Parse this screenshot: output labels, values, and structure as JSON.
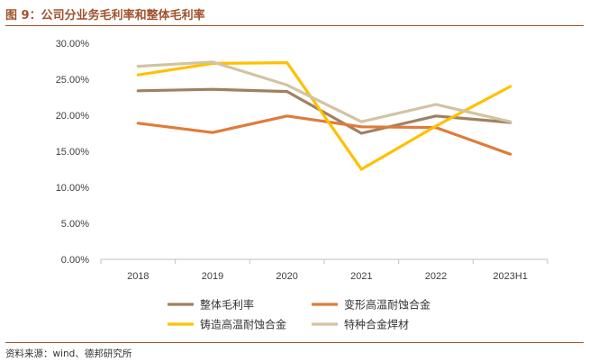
{
  "figure": {
    "title": "图 9：公司分业务毛利率和整体毛利率",
    "source": "资料来源：wind、德邦研究所"
  },
  "chart_data": {
    "type": "line",
    "categories": [
      "2018",
      "2019",
      "2020",
      "2021",
      "2022",
      "2023H1"
    ],
    "y_ticks": [
      "30.00%",
      "25.00%",
      "20.00%",
      "15.00%",
      "10.00%",
      "5.00%",
      "0.00%"
    ],
    "ylim": [
      0,
      30
    ],
    "grid": false,
    "legend_position": "bottom",
    "series": [
      {
        "name": "整体毛利率",
        "color": "#a08060",
        "values": [
          23.4,
          23.6,
          23.3,
          17.5,
          19.9,
          19.0
        ]
      },
      {
        "name": "变形高温耐蚀合金",
        "color": "#e07b3a",
        "values": [
          18.9,
          17.6,
          19.9,
          18.4,
          18.3,
          14.6
        ]
      },
      {
        "name": "铸造高温耐蚀合金",
        "color": "#ffc000",
        "values": [
          25.6,
          27.2,
          27.3,
          12.5,
          18.5,
          24.0
        ]
      },
      {
        "name": "特种合金焊材",
        "color": "#d2c3a3",
        "values": [
          26.8,
          27.4,
          24.2,
          19.1,
          21.5,
          19.1
        ]
      }
    ]
  }
}
